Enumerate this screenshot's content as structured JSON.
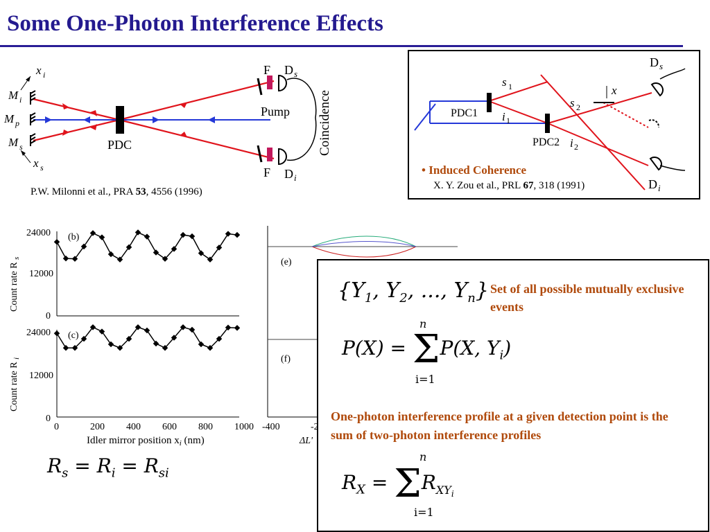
{
  "title": "Some One-Photon Interference Effects",
  "left_figure": {
    "labels": {
      "xi": "x",
      "xi_sub": "i",
      "Mi": "M",
      "Mi_sub": "i",
      "Mp": "M",
      "Mp_sub": "p",
      "Ms": "M",
      "Ms_sub": "s",
      "xs": "x",
      "xs_sub": "s",
      "pdc": "PDC",
      "pump": "Pump",
      "F_top": "F",
      "F_bot": "F",
      "Ds": "D",
      "Ds_sub": "s",
      "Di": "D",
      "Di_sub": "i",
      "coincidence": "Coincidence"
    },
    "citation_pre": "P.W. Milonni et al., PRA ",
    "citation_vol": "53",
    "citation_post": ", 4556 (1996)"
  },
  "right_figure": {
    "labels": {
      "s1": "s",
      "s1_sub": "1",
      "i1": "i",
      "i1_sub": "1",
      "s2": "s",
      "s2_sub": "2",
      "i2": "i",
      "i2_sub": "2",
      "x": "x",
      "pdc1": "PDC1",
      "pdc2": "PDC2",
      "Ds": "D",
      "Ds_sub": "s",
      "Di": "D",
      "Di_sub": "i"
    },
    "bullet": "• Induced Coherence",
    "citation_pre": "X. Y. Zou et al., PRL ",
    "citation_vol": "67",
    "citation_post": ", 318 (1991)"
  },
  "colors": {
    "title": "#241a8f",
    "beam_red": "#e0141c",
    "beam_blue": "#2438d8",
    "accent": "#b04a0c"
  },
  "chart_data": [
    {
      "type": "scatter",
      "panel": "(b)",
      "ylabel": "Count rate R",
      "ylabel_sub": "s",
      "yticks": [
        "0",
        "12000",
        "24000"
      ],
      "ylim": [
        0,
        24000
      ],
      "xlim": [
        0,
        1000
      ],
      "x": [
        0,
        50,
        100,
        150,
        200,
        250,
        300,
        350,
        400,
        450,
        500,
        550,
        600,
        650,
        700,
        750,
        800,
        850,
        900,
        950,
        1000
      ],
      "y": [
        21000,
        16300,
        16200,
        19700,
        23500,
        22300,
        17500,
        16000,
        19500,
        23700,
        22500,
        18000,
        16200,
        19000,
        23000,
        22600,
        17800,
        16000,
        19400,
        23300,
        23000
      ]
    },
    {
      "type": "scatter",
      "panel": "(c)",
      "ylabel": "Count rate R",
      "ylabel_sub": "i",
      "yticks": [
        "0",
        "12000",
        "24000"
      ],
      "ylim": [
        0,
        24000
      ],
      "xlim": [
        0,
        1000
      ],
      "xticks": [
        "0",
        "200",
        "400",
        "600",
        "800",
        "1000"
      ],
      "xlabel": "Idler mirror position x",
      "xlabel_sub": "i",
      "xlabel_unit": " (nm)",
      "x": [
        0,
        50,
        100,
        150,
        200,
        250,
        300,
        350,
        400,
        450,
        500,
        550,
        600,
        650,
        700,
        750,
        800,
        850,
        900,
        950,
        1000
      ],
      "y": [
        23000,
        19000,
        19000,
        21500,
        24700,
        23500,
        20000,
        19000,
        21500,
        24700,
        23800,
        20200,
        19000,
        21800,
        24700,
        24000,
        20000,
        19000,
        21500,
        24600,
        24500
      ]
    },
    {
      "type": "line",
      "panel": "(e)"
    },
    {
      "type": "line",
      "panel": "(f)",
      "xticks": [
        "-400",
        "-2"
      ],
      "xlabel": "ΔL'"
    }
  ],
  "equation_bottom": "R_s = R_i = R_si",
  "theory_box": {
    "set_text": "Set of all possible mutually exclusive events",
    "one_photon_text": "One-photon interference profile at a given detection point is the sum of two-photon interference profiles"
  }
}
